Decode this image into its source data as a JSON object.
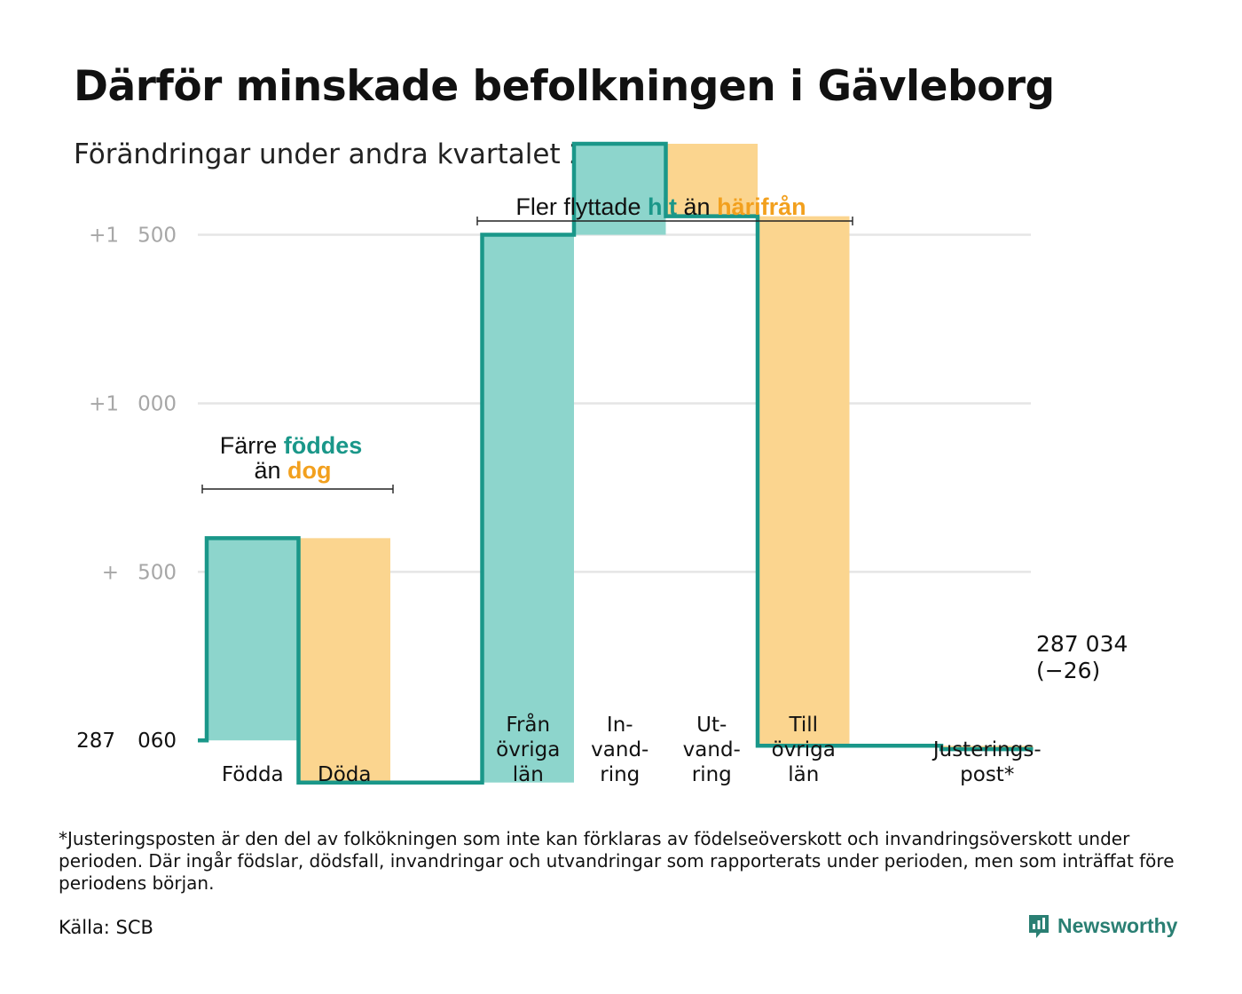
{
  "header": {
    "title": "Därför minskade befolkningen i Gävleborg",
    "subtitle": "Förändringar under andra kvartalet 2023"
  },
  "annotations": {
    "births_deaths": {
      "line1_a": "Färre",
      "line1_b": "föddes",
      "line2_a": "än",
      "line2_b": "dog"
    },
    "migration": {
      "part_a": "Fler flyttade",
      "part_b": "hit",
      "part_c": "än",
      "part_d": "härifrån"
    }
  },
  "end_label": {
    "value": "287 034",
    "change": "(−26)"
  },
  "footer": {
    "footnote": "*Justeringsposten är den del av folkökningen som inte kan förklaras av födelseöverskott och invandringsöverskott under perioden. Där ingår födslar, dödsfall, invandringar och utvandringar som rapporterats under perioden, men som inträffat före periodens början.",
    "source": "Källa: SCB",
    "brand": "Newsworthy"
  },
  "colors": {
    "increase": "#8dd5cc",
    "decrease": "#fbd58f",
    "line": "#1a9789",
    "grid": "#e5e5e5",
    "highlight_in": "#1a9789",
    "highlight_out": "#f2a01e"
  },
  "chart_data": {
    "type": "waterfall",
    "start_value": 287060,
    "end_value": 287034,
    "net_change": -26,
    "y_ticks": [
      {
        "value": 287060,
        "left": "287",
        "right": "060"
      },
      {
        "value": 287560,
        "left": "+",
        "right": "500"
      },
      {
        "value": 288060,
        "left": "+1",
        "right": "000"
      },
      {
        "value": 288560,
        "left": "+1",
        "right": "500"
      }
    ],
    "ylim": [
      286900,
      288830
    ],
    "steps": [
      {
        "category": "Födda",
        "label_lines": [
          "Födda"
        ],
        "change": 600
      },
      {
        "category": "Döda",
        "label_lines": [
          "Döda"
        ],
        "change": -725
      },
      {
        "category": "",
        "label_lines": [],
        "change": 0
      },
      {
        "category": "Från övriga län",
        "label_lines": [
          "Från",
          "övriga",
          "län"
        ],
        "change": 1625
      },
      {
        "category": "Invandring",
        "label_lines": [
          "In-",
          "vand-",
          "ring"
        ],
        "change": 270
      },
      {
        "category": "Utvandring",
        "label_lines": [
          "Ut-",
          "vand-",
          "ring"
        ],
        "change": -215
      },
      {
        "category": "Till övriga län",
        "label_lines": [
          "Till",
          "övriga",
          "län"
        ],
        "change": -1571
      },
      {
        "category": "",
        "label_lines": [],
        "change": 0
      },
      {
        "category": "Justeringspost*",
        "label_lines": [
          "Justerings-",
          "post*"
        ],
        "change": -10
      }
    ]
  }
}
